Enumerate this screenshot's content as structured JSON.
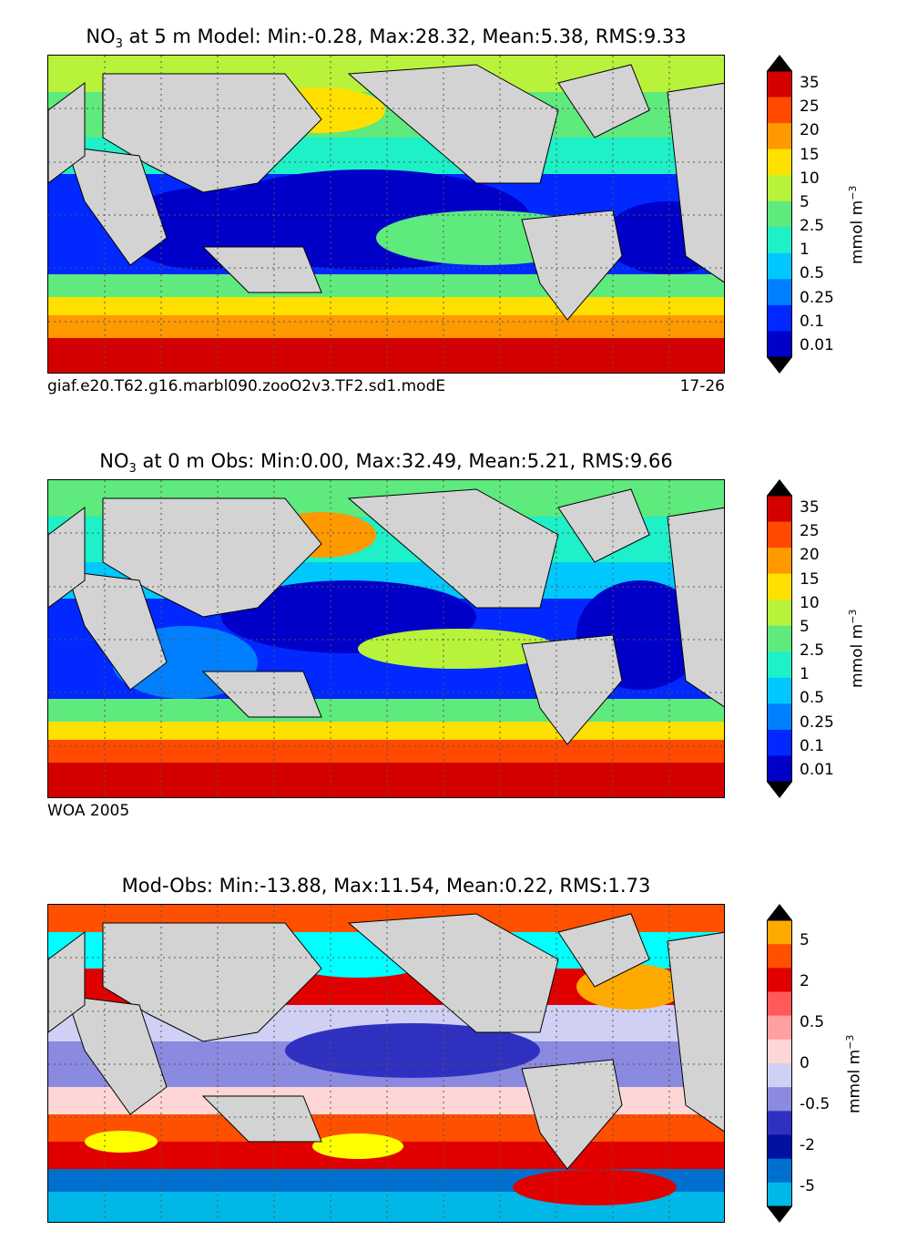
{
  "panels": [
    {
      "id": "model",
      "title_pre": "NO",
      "title_sub": "3",
      "title_post": " at 5 m Model: Min:-0.28, Max:28.32, Mean:5.38, RMS:9.33",
      "caption_left": "giaf.e20.T62.g16.marbl090.zooO2v3.TF2.sd1.modE",
      "caption_right": "17-26",
      "colorbar": {
        "ticks": [
          "35",
          "25",
          "20",
          "15",
          "10",
          "5",
          "2.5",
          "1",
          "0.5",
          "0.25",
          "0.1",
          "0.01"
        ],
        "colors": [
          "#7f0000",
          "#d40000",
          "#ff4a00",
          "#ff9900",
          "#ffe000",
          "#b8f23a",
          "#5eea7d",
          "#1ef0c8",
          "#00c8ff",
          "#0080ff",
          "#0028ff",
          "#0000c8",
          "#00008b"
        ],
        "unit": "mmol m",
        "unit_sup": "−3"
      }
    },
    {
      "id": "obs",
      "title_pre": "NO",
      "title_sub": "3",
      "title_post": " at 0 m Obs: Min:0.00, Max:32.49, Mean:5.21, RMS:9.66",
      "caption_left": "WOA 2005",
      "caption_right": "",
      "colorbar": {
        "ticks": [
          "35",
          "25",
          "20",
          "15",
          "10",
          "5",
          "2.5",
          "1",
          "0.5",
          "0.25",
          "0.1",
          "0.01"
        ],
        "colors": [
          "#7f0000",
          "#d40000",
          "#ff4a00",
          "#ff9900",
          "#ffe000",
          "#b8f23a",
          "#5eea7d",
          "#1ef0c8",
          "#00c8ff",
          "#0080ff",
          "#0028ff",
          "#0000c8",
          "#00008b"
        ],
        "unit": "mmol m",
        "unit_sup": "−3"
      }
    },
    {
      "id": "diff",
      "title_pre": "Mod-Obs: Min:-13.88, Max:11.54, Mean:0.22, RMS:1.73",
      "title_sub": "",
      "title_post": "",
      "caption_left": "",
      "caption_right": "",
      "colorbar": {
        "ticks": [
          "5",
          "2",
          "0.5",
          "0",
          "-0.5",
          "-2",
          "-5"
        ],
        "colors": [
          "#ffff00",
          "#ffaa00",
          "#ff5000",
          "#e00000",
          "#ff5a5a",
          "#ffa0a0",
          "#ffd6d6",
          "#d0d0f4",
          "#8a8ae0",
          "#3030c0",
          "#0010a0",
          "#0070d0",
          "#00b8e8",
          "#00ffff"
        ],
        "unit": "mmol m",
        "unit_sup": "−3"
      }
    }
  ]
}
